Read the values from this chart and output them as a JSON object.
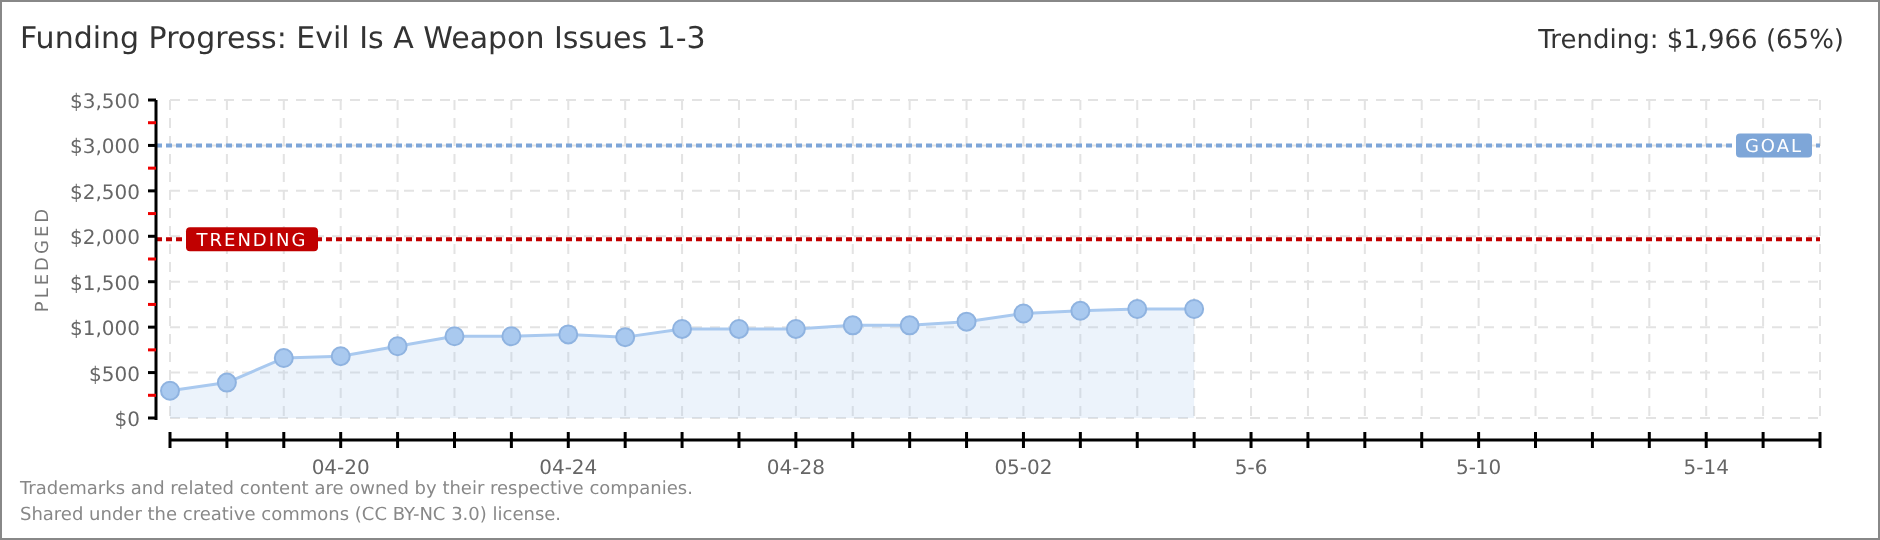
{
  "chart_data": {
    "type": "area",
    "title": "Funding Progress: Evil Is A Weapon Issues 1-3",
    "subtitle": "Trending: $1,966 (65%)",
    "ylabel": "PLEDGED",
    "x": [
      "--04-17",
      "--04-18",
      "--04-19",
      "--04-20",
      "--04-21",
      "--04-22",
      "--04-23",
      "--04-24",
      "--04-25",
      "--04-26",
      "--04-27",
      "--04-28",
      "--04-29",
      "--04-30",
      "--05-01",
      "--05-02",
      "--05-03",
      "--05-04",
      "--05-05"
    ],
    "series": [
      {
        "color": "#a9c9ef",
        "values": [
          300,
          390,
          660,
          680,
          790,
          900,
          900,
          920,
          890,
          980,
          980,
          980,
          1020,
          1020,
          1060,
          1150,
          1180,
          1200,
          1200
        ]
      }
    ],
    "xlim": [
      "--04-17",
      "--05-16"
    ],
    "xticks": [
      {
        "value": "--04-17",
        "label": null
      },
      {
        "value": "--04-18",
        "label": null
      },
      {
        "value": "--04-19",
        "label": null
      },
      {
        "value": "--04-20",
        "label": "04-20"
      },
      {
        "value": "--04-21",
        "label": null
      },
      {
        "value": "--04-22",
        "label": null
      },
      {
        "value": "--04-23",
        "label": null
      },
      {
        "value": "--04-24",
        "label": "04-24"
      },
      {
        "value": "--04-25",
        "label": null
      },
      {
        "value": "--04-26",
        "label": null
      },
      {
        "value": "--04-27",
        "label": null
      },
      {
        "value": "--04-28",
        "label": "04-28"
      },
      {
        "value": "--04-29",
        "label": null
      },
      {
        "value": "--04-30",
        "label": null
      },
      {
        "value": "--05-01",
        "label": null
      },
      {
        "value": "--05-02",
        "label": "05-02"
      },
      {
        "value": "--05-03",
        "label": null
      },
      {
        "value": "--05-04",
        "label": null
      },
      {
        "value": "--05-05",
        "label": null
      },
      {
        "value": "--05-06",
        "label": "5-6"
      },
      {
        "value": "--05-07",
        "label": null
      },
      {
        "value": "--05-08",
        "label": null
      },
      {
        "value": "--05-09",
        "label": null
      },
      {
        "value": "--05-10",
        "label": "5-10"
      },
      {
        "value": "--05-11",
        "label": null
      },
      {
        "value": "--05-12",
        "label": null
      },
      {
        "value": "--05-13",
        "label": null
      },
      {
        "value": "--05-14",
        "label": "5-14"
      },
      {
        "value": "--05-15",
        "label": null
      },
      {
        "value": "--05-16",
        "label": null
      }
    ],
    "ylim": [
      0,
      3500
    ],
    "yticks": [
      {
        "value": 0,
        "label": "$0"
      },
      {
        "value": 250,
        "label": null
      },
      {
        "value": 500,
        "label": "$500"
      },
      {
        "value": 750,
        "label": null
      },
      {
        "value": 1000,
        "label": "$1,000"
      },
      {
        "value": 1250,
        "label": null
      },
      {
        "value": 1500,
        "label": "$1,500"
      },
      {
        "value": 1750,
        "label": null
      },
      {
        "value": 2000,
        "label": "$2,000"
      },
      {
        "value": 2250,
        "label": null
      },
      {
        "value": 2500,
        "label": "$2,500"
      },
      {
        "value": 2750,
        "label": null
      },
      {
        "value": 3000,
        "label": "$3,000"
      },
      {
        "value": 3250,
        "label": null
      },
      {
        "value": 3500,
        "label": "$3,500"
      }
    ],
    "grid": true,
    "marker": "circle",
    "ref_lines": [
      {
        "axis": "y",
        "value": 3000,
        "label": "GOAL",
        "color": "#7ea6d8",
        "line_style": "dotted"
      },
      {
        "axis": "y",
        "value": 1966,
        "label": "TRENDING",
        "color": "#c00000",
        "line_style": "dotted"
      }
    ],
    "annotations": [
      "Trademarks and related content are owned by their respective companies.",
      "Shared under the creative commons (CC BY-NC 3.0) license."
    ]
  }
}
